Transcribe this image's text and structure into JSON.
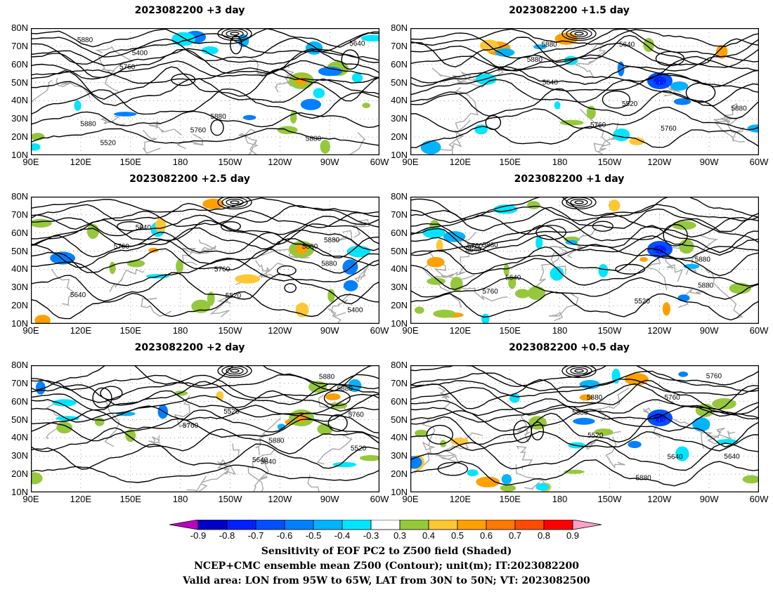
{
  "chart_data": [
    {
      "type": "heatmap",
      "title": "2023082200 +3 day",
      "contour_labels": [
        "5520",
        "5640",
        "5400",
        "5760",
        "5880",
        "5760",
        "5880",
        "5880",
        "5880"
      ]
    },
    {
      "type": "heatmap",
      "title": "2023082200 +1.5 day",
      "contour_labels": [
        "5640",
        "5520",
        "5640",
        "5760",
        "5880",
        "5760",
        "5880",
        "5880"
      ]
    },
    {
      "type": "heatmap",
      "title": "2023082200 +2.5 day",
      "contour_labels": [
        "5520",
        "5640",
        "5400",
        "5640",
        "5760",
        "5880",
        "5760",
        "5880",
        "5880"
      ]
    },
    {
      "type": "heatmap",
      "title": "2023082200 +1 day",
      "contour_labels": [
        "5640",
        "5640",
        "5520",
        "5760",
        "5760",
        "5880",
        "5880",
        "5880"
      ]
    },
    {
      "type": "heatmap",
      "title": "2023082200 +2 day",
      "contour_labels": [
        "5520",
        "5520",
        "5640",
        "5640",
        "5760",
        "5760",
        "5880",
        "5880",
        "5880"
      ]
    },
    {
      "type": "heatmap",
      "title": "2023082200 +0.5 day",
      "contour_labels": [
        "5640",
        "5520",
        "5640",
        "5760",
        "5760",
        "5880",
        "5880",
        "5880"
      ]
    }
  ],
  "axes": {
    "y_ticks": [
      "80N",
      "70N",
      "60N",
      "50N",
      "40N",
      "30N",
      "20N",
      "10N"
    ],
    "x_ticks": [
      "90E",
      "120E",
      "150E",
      "180",
      "150W",
      "120W",
      "90W",
      "60W"
    ],
    "lat_range": [
      10,
      80
    ],
    "lon_range": [
      90,
      300
    ],
    "grid": true
  },
  "colorbar": {
    "levels": [
      "-0.9",
      "-0.8",
      "-0.7",
      "-0.6",
      "-0.5",
      "-0.4",
      "-0.3",
      "0.3",
      "0.4",
      "0.5",
      "0.6",
      "0.7",
      "0.8",
      "0.9"
    ],
    "colors": [
      "#c000c0",
      "#0000c8",
      "#0020ff",
      "#0050ff",
      "#0080ff",
      "#00b4ff",
      "#00e6ff",
      "#ffffff",
      "#96c83c",
      "#ffc832",
      "#ffa000",
      "#ff7800",
      "#ff4b00",
      "#ff0000",
      "#ffa0c8"
    ]
  },
  "footer": {
    "line1": "Sensitivity of EOF PC2 to Z500 field (Shaded)",
    "line2": "NCEP+CMC ensemble mean Z500 (Contour); unit(m); IT:2023082200",
    "line3": "Valid area: LON from 95W to 65W, LAT from 30N to 50N; VT: 2023082500"
  }
}
